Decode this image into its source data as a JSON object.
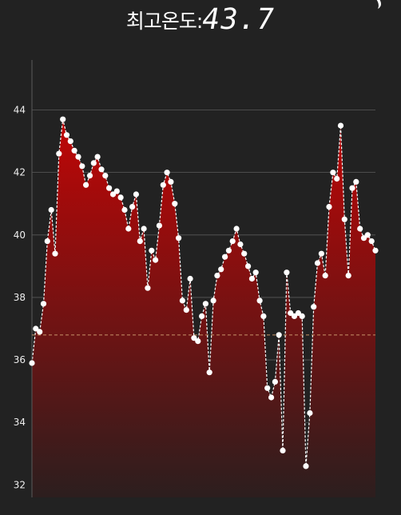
{
  "header": {
    "title_label": "최고온도:",
    "title_value": "43.7"
  },
  "corner_icon": "crescent-icon",
  "colors": {
    "background": "#222222",
    "fill_top": "#c00606",
    "fill_bottom": "#2c1e1e",
    "line": "#ffffff",
    "grid": "#5a5a5a",
    "crosshair": "#c8956a",
    "tick_label": "#eeeeee"
  },
  "chart_data": {
    "type": "area",
    "title": "최고온도:43.7",
    "xlabel": "",
    "ylabel": "",
    "ylim": [
      31.6,
      45.6
    ],
    "yticks": [
      "32",
      "34",
      "36",
      "38",
      "40",
      "42",
      "44"
    ],
    "grid": "horizontal",
    "crosshair": {
      "x_index": 100,
      "y": 36.8
    },
    "series": [
      {
        "values": [
          35.9,
          37.0,
          36.9,
          37.8,
          39.8,
          40.8,
          39.4,
          42.6,
          43.7,
          43.2,
          43.0,
          42.7,
          42.5,
          42.2,
          41.6,
          41.9,
          42.3,
          42.5,
          42.1,
          41.9,
          41.5,
          41.3,
          41.4,
          41.2,
          40.8,
          40.2,
          40.9,
          41.3,
          39.8,
          40.2,
          38.3,
          39.5,
          39.2,
          40.3,
          41.6,
          42.0,
          41.7,
          41.0,
          39.9,
          37.9,
          37.6,
          38.6,
          36.7,
          36.6,
          37.4,
          37.8,
          35.6,
          37.9,
          38.7,
          38.9,
          39.3,
          39.5,
          39.8,
          40.2,
          39.7,
          39.4,
          39.0,
          38.6,
          38.8,
          37.9,
          37.4,
          35.1,
          34.8,
          35.3,
          36.8,
          33.1,
          38.8,
          37.5,
          37.4,
          37.5,
          37.4,
          32.6,
          34.3,
          37.7,
          39.1,
          39.4,
          38.7,
          40.9,
          42.0,
          41.8,
          43.5,
          40.5,
          38.7,
          41.5,
          41.7,
          40.2,
          39.9,
          40.0,
          39.8,
          39.5
        ]
      }
    ]
  }
}
